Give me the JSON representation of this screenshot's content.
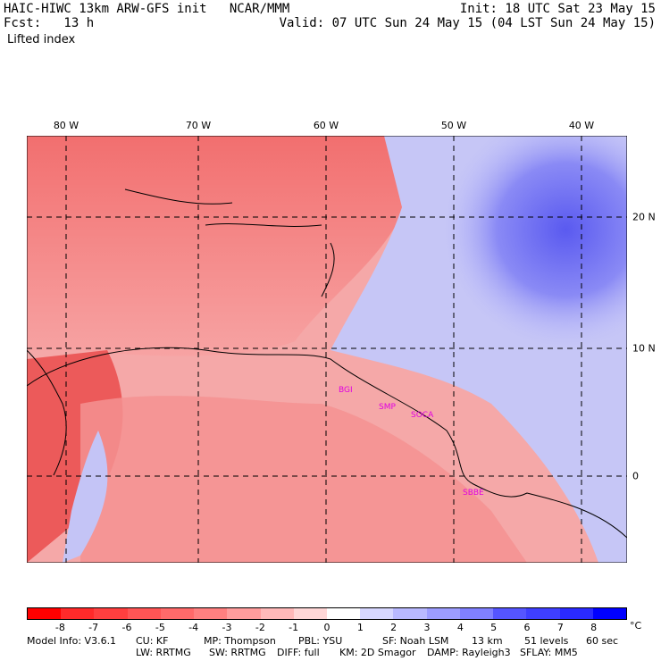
{
  "header": {
    "line1_left": "HAIC-HIWC 13km ARW-GFS init   NCAR/MMM",
    "line1_right": "Init: 18 UTC Sat 23 May 15",
    "line2_left": "Fcst:   13 h",
    "line2_right": "Valid: 07 UTC Sun 24 May 15 (04 LST Sun 24 May 15)",
    "field": "Lifted index"
  },
  "map": {
    "longitude_labels": [
      "80 W",
      "70 W",
      "60 W",
      "50 W",
      "40 W"
    ],
    "latitude_labels": [
      "20 N",
      "10 N",
      "0"
    ],
    "stations": [
      "BGI",
      "SMP",
      "SOCA",
      "SBBE"
    ]
  },
  "colorbar": {
    "tick_labels": [
      "-8",
      "-7",
      "-6",
      "-5",
      "-4",
      "-3",
      "-2",
      "-1",
      "0",
      "1",
      "2",
      "3",
      "4",
      "5",
      "6",
      "7",
      "8"
    ],
    "unit": "°C",
    "colors": [
      "#ff0000",
      "#ff2a2a",
      "#ff3f3f",
      "#ff5555",
      "#ff6a6a",
      "#ff8080",
      "#ff9d9d",
      "#ffb9b9",
      "#ffd7d7",
      "#ffffff",
      "#d7d7ff",
      "#b9b9ff",
      "#9d9dff",
      "#8080ff",
      "#5555ff",
      "#3f3fff",
      "#2a2aff",
      "#0000ff"
    ]
  },
  "footer": {
    "line1": [
      "Model Info: V3.6.1",
      "CU: KF",
      "MP: Thompson",
      "PBL: YSU",
      "SF: Noah LSM",
      "13 km",
      "51 levels",
      "60 sec"
    ],
    "line2": [
      "LW: RRTMG",
      "SW: RRTMG",
      "DIFF: full",
      "KM: 2D Smagor",
      "DAMP: Rayleigh3",
      "SFLAY: MM5"
    ]
  }
}
